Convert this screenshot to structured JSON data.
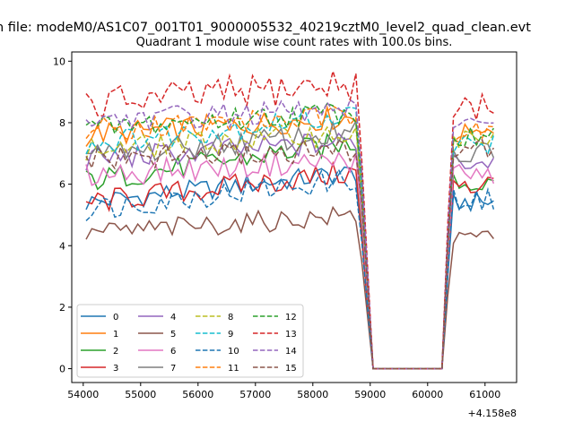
{
  "suptitle": "n file: modeM0/AS1C07_001T01_9000005532_40219cztM0_level2_quad_clean.evt",
  "chart_data": {
    "type": "line",
    "title": "Quadrant 1 module wise count rates with 100.0s bins.",
    "xlabel": "",
    "ylabel": "",
    "offset_text": "+4.158e8",
    "xlim": [
      53800,
      61550
    ],
    "ylim": [
      -0.45,
      10.3
    ],
    "xticks": [
      54000,
      55000,
      56000,
      57000,
      58000,
      59000,
      60000,
      61000
    ],
    "yticks": [
      0,
      2,
      4,
      6,
      8,
      10
    ],
    "grid": false,
    "legend_position": "lower left",
    "legend_columns": 4,
    "x_segments": [
      {
        "start": 54050,
        "step": 100,
        "count": 49
      },
      {
        "start": 59050,
        "step": 100,
        "count": 12
      },
      {
        "start": 60250,
        "step": 100,
        "count": 10
      }
    ],
    "series": [
      {
        "name": "0",
        "color": "#1f77b4",
        "dash": false,
        "level": 5.4,
        "amp": 0.22,
        "trend": 1.0,
        "end": 5.4
      },
      {
        "name": "1",
        "color": "#ff7f0e",
        "dash": false,
        "level": 7.6,
        "amp": 0.25,
        "trend": 0.6,
        "end": 7.6
      },
      {
        "name": "2",
        "color": "#2ca02c",
        "dash": false,
        "level": 6.1,
        "amp": 0.25,
        "trend": 1.3,
        "end": 6.0
      },
      {
        "name": "3",
        "color": "#d62728",
        "dash": false,
        "level": 5.4,
        "amp": 0.25,
        "trend": 1.0,
        "end": 5.9
      },
      {
        "name": "4",
        "color": "#9467bd",
        "dash": false,
        "level": 6.8,
        "amp": 0.25,
        "trend": 0.6,
        "end": 6.7
      },
      {
        "name": "5",
        "color": "#8c564b",
        "dash": false,
        "level": 4.4,
        "amp": 0.22,
        "trend": 0.6,
        "end": 4.3
      },
      {
        "name": "6",
        "color": "#e377c2",
        "dash": false,
        "level": 6.3,
        "amp": 0.25,
        "trend": 0.5,
        "end": 6.3
      },
      {
        "name": "7",
        "color": "#7f7f7f",
        "dash": false,
        "level": 6.9,
        "amp": 0.25,
        "trend": 0.8,
        "end": 7.0
      },
      {
        "name": "8",
        "color": "#bcbd22",
        "dash": true,
        "level": 7.1,
        "amp": 0.25,
        "trend": 0.6,
        "end": 7.4
      },
      {
        "name": "9",
        "color": "#17becf",
        "dash": true,
        "level": 7.3,
        "amp": 0.25,
        "trend": 1.0,
        "end": 7.3
      },
      {
        "name": "10",
        "color": "#1f77b4",
        "dash": true,
        "level": 5.2,
        "amp": 0.25,
        "trend": 1.0,
        "end": 5.5
      },
      {
        "name": "11",
        "color": "#ff7f0e",
        "dash": true,
        "level": 7.8,
        "amp": 0.25,
        "trend": 0.4,
        "end": 7.7
      },
      {
        "name": "12",
        "color": "#2ca02c",
        "dash": true,
        "level": 7.8,
        "amp": 0.25,
        "trend": 0.6,
        "end": 7.5
      },
      {
        "name": "13",
        "color": "#d62728",
        "dash": true,
        "level": 8.6,
        "amp": 0.35,
        "trend": 0.7,
        "end": 8.5
      },
      {
        "name": "14",
        "color": "#9467bd",
        "dash": true,
        "level": 8.1,
        "amp": 0.25,
        "trend": 0.3,
        "end": 7.9
      },
      {
        "name": "15",
        "color": "#8c564b",
        "dash": true,
        "level": 6.8,
        "amp": 0.25,
        "trend": 0.3,
        "end": 7.2
      }
    ]
  }
}
